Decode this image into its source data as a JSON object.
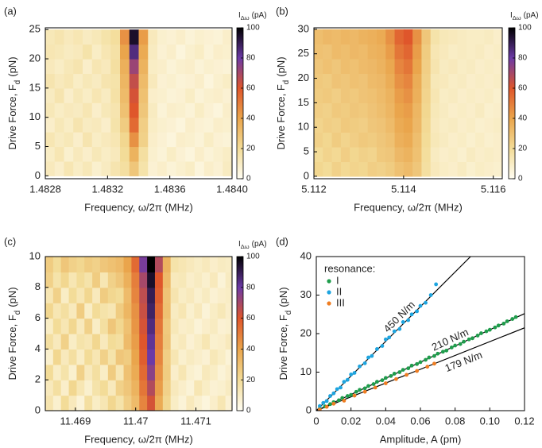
{
  "chart_data": [
    {
      "type": "heatmap",
      "panel_label": "(a)",
      "xlabel": "Frequency, ω/2π (MHz)",
      "ylabel": [
        "Drive Force, F",
        "d",
        "(pN)"
      ],
      "colorbar_label": [
        "I",
        "Δω",
        "(pA)"
      ],
      "xlim": [
        1.4828,
        1.484
      ],
      "xticks": [
        1.4828,
        1.4832,
        1.4836,
        {
          "value": 1.484,
          "label": "1.4840"
        }
      ],
      "ylim": [
        -0.5,
        25.3
      ],
      "yticks": [
        0,
        5,
        10,
        15,
        20,
        25
      ],
      "clim": [
        0,
        100
      ],
      "cticks": [
        0,
        20,
        40,
        60,
        80,
        100
      ],
      "colorscale": [
        [
          0,
          "#fffdf2"
        ],
        [
          20,
          "#f3dc98"
        ],
        [
          40,
          "#eaa54c"
        ],
        [
          60,
          "#df562b"
        ],
        [
          80,
          "#6c3aa6"
        ],
        [
          100,
          "#000000"
        ]
      ],
      "x": [
        1.48283,
        1.48289,
        1.48295,
        1.48301,
        1.48307,
        1.48313,
        1.48319,
        1.48325,
        1.48331,
        1.48337,
        1.48343,
        1.48349,
        1.48355,
        1.48361,
        1.48367,
        1.48373,
        1.48379,
        1.48385,
        1.48391,
        1.48397
      ],
      "y": [
        1.25,
        3.75,
        6.25,
        8.75,
        11.25,
        13.75,
        16.25,
        18.75,
        21.25,
        23.75
      ],
      "z": [
        [
          12,
          9,
          14,
          10,
          13,
          8,
          11,
          15,
          18,
          28,
          16,
          7,
          9,
          6,
          8,
          10,
          5,
          9,
          7,
          11
        ],
        [
          10,
          14,
          8,
          12,
          9,
          13,
          10,
          12,
          20,
          35,
          18,
          8,
          6,
          10,
          7,
          5,
          9,
          6,
          8,
          10
        ],
        [
          14,
          11,
          13,
          9,
          15,
          10,
          12,
          14,
          22,
          45,
          24,
          9,
          7,
          5,
          9,
          8,
          6,
          10,
          7,
          6
        ],
        [
          9,
          13,
          10,
          15,
          11,
          12,
          9,
          16,
          26,
          55,
          25,
          10,
          8,
          7,
          5,
          9,
          7,
          6,
          9,
          8
        ],
        [
          13,
          10,
          12,
          11,
          14,
          9,
          13,
          15,
          30,
          60,
          28,
          11,
          6,
          9,
          8,
          6,
          10,
          7,
          5,
          9
        ],
        [
          11,
          15,
          9,
          13,
          10,
          14,
          11,
          17,
          32,
          62,
          30,
          9,
          8,
          6,
          7,
          10,
          6,
          8,
          9,
          7
        ],
        [
          15,
          12,
          14,
          10,
          13,
          11,
          15,
          16,
          34,
          65,
          32,
          12,
          7,
          8,
          6,
          7,
          9,
          5,
          8,
          10
        ],
        [
          12,
          10,
          13,
          15,
          9,
          14,
          12,
          18,
          36,
          72,
          35,
          10,
          9,
          6,
          8,
          9,
          6,
          8,
          7,
          6
        ],
        [
          14,
          13,
          11,
          12,
          16,
          10,
          14,
          17,
          40,
          85,
          38,
          11,
          7,
          9,
          5,
          8,
          10,
          6,
          9,
          8
        ],
        [
          13,
          15,
          12,
          14,
          11,
          13,
          16,
          19,
          45,
          95,
          42,
          12,
          8,
          7,
          9,
          6,
          8,
          7,
          6,
          9
        ]
      ]
    },
    {
      "type": "heatmap",
      "panel_label": "(b)",
      "xlabel": "Frequency, ω/2π (MHz)",
      "ylabel": [
        "Drive Force, F",
        "d",
        "(pN)"
      ],
      "colorbar_label": [
        "I",
        "Δω",
        "(pA)"
      ],
      "xlim": [
        5.112,
        5.1162
      ],
      "xticks": [
        5.112,
        5.114,
        5.116
      ],
      "ylim": [
        -0.5,
        30.3
      ],
      "yticks": [
        0,
        5,
        10,
        15,
        20,
        25,
        30
      ],
      "clim": [
        0,
        100
      ],
      "cticks": [
        0,
        20,
        40,
        60,
        80,
        100
      ],
      "colorscale": [
        [
          0,
          "#fffdf2"
        ],
        [
          20,
          "#f3dc98"
        ],
        [
          40,
          "#eaa54c"
        ],
        [
          60,
          "#df562b"
        ],
        [
          80,
          "#6c3aa6"
        ],
        [
          100,
          "#000000"
        ]
      ],
      "x": [
        5.1121,
        5.1123,
        5.1125,
        5.1127,
        5.1129,
        5.1131,
        5.1133,
        5.1135,
        5.1137,
        5.1139,
        5.1141,
        5.1143,
        5.1145,
        5.1147,
        5.1149,
        5.1151,
        5.1153,
        5.1155,
        5.1157,
        5.1159,
        5.1161
      ],
      "y": [
        1.5,
        4.5,
        7.5,
        10.5,
        13.5,
        16.5,
        19.5,
        22.5,
        25.5,
        28.5
      ],
      "z": [
        [
          22,
          20,
          24,
          21,
          23,
          22,
          25,
          24,
          26,
          30,
          32,
          28,
          18,
          12,
          10,
          9,
          11,
          8,
          10,
          9,
          8
        ],
        [
          20,
          23,
          21,
          25,
          22,
          24,
          23,
          27,
          28,
          33,
          35,
          30,
          19,
          11,
          9,
          10,
          8,
          11,
          9,
          10,
          9
        ],
        [
          24,
          22,
          26,
          23,
          25,
          27,
          26,
          28,
          30,
          36,
          38,
          31,
          20,
          13,
          11,
          9,
          10,
          8,
          10,
          8,
          9
        ],
        [
          23,
          25,
          24,
          27,
          26,
          25,
          28,
          29,
          32,
          38,
          40,
          33,
          21,
          12,
          10,
          11,
          9,
          10,
          8,
          9,
          10
        ],
        [
          25,
          24,
          27,
          26,
          28,
          27,
          29,
          31,
          34,
          40,
          42,
          34,
          22,
          13,
          11,
          9,
          10,
          9,
          11,
          8,
          9
        ],
        [
          26,
          27,
          25,
          28,
          27,
          29,
          30,
          32,
          35,
          42,
          45,
          36,
          23,
          14,
          10,
          11,
          9,
          10,
          9,
          10,
          8
        ],
        [
          27,
          26,
          29,
          28,
          30,
          29,
          32,
          33,
          37,
          45,
          48,
          37,
          24,
          13,
          12,
          10,
          11,
          9,
          10,
          9,
          10
        ],
        [
          28,
          30,
          28,
          31,
          30,
          32,
          33,
          35,
          39,
          48,
          52,
          40,
          25,
          15,
          11,
          12,
          10,
          11,
          9,
          10,
          9
        ],
        [
          30,
          29,
          32,
          31,
          33,
          32,
          35,
          36,
          42,
          52,
          56,
          42,
          26,
          14,
          12,
          10,
          11,
          10,
          11,
          9,
          10
        ],
        [
          31,
          33,
          32,
          34,
          33,
          35,
          36,
          38,
          45,
          56,
          60,
          45,
          28,
          16,
          13,
          12,
          11,
          10,
          10,
          11,
          9
        ]
      ]
    },
    {
      "type": "heatmap",
      "panel_label": "(c)",
      "xlabel": "Frequency, ω/2π (MHz)",
      "ylabel": [
        "Drive Force, F",
        "d",
        "(pN)"
      ],
      "colorbar_label": [
        "I",
        "Δω",
        "(pA)"
      ],
      "xlim": [
        11.4685,
        11.4716
      ],
      "xticks": [
        11.469,
        11.47,
        11.471
      ],
      "ylim": [
        0,
        10
      ],
      "yticks": [
        0,
        2,
        4,
        6,
        8,
        10
      ],
      "clim": [
        0,
        100
      ],
      "cticks": [
        0,
        20,
        40,
        60,
        80,
        100
      ],
      "colorscale": [
        [
          0,
          "#fffdf2"
        ],
        [
          20,
          "#f3dc98"
        ],
        [
          40,
          "#eaa54c"
        ],
        [
          60,
          "#df562b"
        ],
        [
          80,
          "#6c3aa6"
        ],
        [
          100,
          "#000000"
        ]
      ],
      "x": [
        11.468565,
        11.468695,
        11.468825,
        11.468955,
        11.469085,
        11.469215,
        11.469345,
        11.469475,
        11.469605,
        11.469735,
        11.469865,
        11.469995,
        11.470125,
        11.470255,
        11.470385,
        11.470515,
        11.470645,
        11.470775,
        11.470905,
        11.471035,
        11.471165,
        11.471295,
        11.471425,
        11.471555
      ],
      "y": [
        0.5,
        1.5,
        2.5,
        3.5,
        4.5,
        5.5,
        6.5,
        7.5,
        8.5,
        9.5
      ],
      "z": [
        [
          15,
          8,
          20,
          12,
          6,
          18,
          10,
          14,
          22,
          16,
          25,
          32,
          48,
          62,
          38,
          22,
          10,
          6,
          12,
          8,
          5,
          9,
          14,
          7
        ],
        [
          12,
          18,
          9,
          22,
          14,
          8,
          16,
          20,
          12,
          24,
          28,
          35,
          52,
          68,
          42,
          24,
          12,
          9,
          6,
          14,
          10,
          7,
          8,
          11
        ],
        [
          20,
          10,
          16,
          8,
          24,
          12,
          18,
          10,
          26,
          14,
          30,
          38,
          55,
          75,
          45,
          26,
          9,
          14,
          8,
          6,
          12,
          10,
          6,
          9
        ],
        [
          8,
          22,
          12,
          18,
          10,
          20,
          14,
          24,
          16,
          28,
          26,
          40,
          58,
          80,
          48,
          25,
          14,
          8,
          11,
          9,
          7,
          13,
          10,
          6
        ],
        [
          18,
          12,
          24,
          10,
          16,
          14,
          22,
          12,
          20,
          18,
          32,
          42,
          60,
          82,
          50,
          28,
          10,
          12,
          7,
          10,
          14,
          8,
          9,
          12
        ],
        [
          10,
          20,
          14,
          22,
          12,
          24,
          10,
          18,
          28,
          22,
          30,
          44,
          62,
          85,
          52,
          27,
          13,
          9,
          10,
          6,
          9,
          11,
          7,
          8
        ],
        [
          22,
          14,
          18,
          12,
          26,
          10,
          20,
          16,
          14,
          26,
          34,
          45,
          64,
          88,
          55,
          30,
          11,
          14,
          8,
          12,
          6,
          10,
          13,
          9
        ],
        [
          14,
          24,
          10,
          20,
          14,
          22,
          12,
          26,
          22,
          20,
          32,
          48,
          66,
          90,
          58,
          29,
          15,
          10,
          12,
          8,
          11,
          7,
          9,
          10
        ],
        [
          24,
          16,
          22,
          14,
          20,
          16,
          26,
          14,
          24,
          28,
          36,
          50,
          70,
          95,
          60,
          32,
          12,
          13,
          9,
          11,
          8,
          12,
          6,
          11
        ],
        [
          26,
          20,
          28,
          24,
          22,
          26,
          24,
          28,
          30,
          32,
          40,
          55,
          78,
          100,
          68,
          35,
          16,
          14,
          12,
          10,
          12,
          9,
          11,
          10
        ]
      ]
    },
    {
      "type": "scatter",
      "panel_label": "(d)",
      "xlabel": "Amplitude, A (pm)",
      "ylabel": [
        "Drive Force, F",
        "d",
        "(pN)"
      ],
      "legend_title": "resonance:",
      "xlim": [
        0,
        0.12
      ],
      "xticks": [
        0,
        0.02,
        0.04,
        0.06,
        0.08,
        {
          "value": 0.1,
          "label": "0.10"
        },
        0.12
      ],
      "ylim": [
        0,
        40
      ],
      "yticks": [
        0,
        10,
        20,
        30,
        40
      ],
      "series": [
        {
          "name": "I",
          "color": "#1f9d4c",
          "x": [
            0.002,
            0.005,
            0.008,
            0.01,
            0.013,
            0.015,
            0.018,
            0.02,
            0.023,
            0.025,
            0.028,
            0.03,
            0.033,
            0.035,
            0.038,
            0.04,
            0.043,
            0.045,
            0.048,
            0.05,
            0.053,
            0.055,
            0.058,
            0.06,
            0.063,
            0.065,
            0.068,
            0.07,
            0.073,
            0.075,
            0.078,
            0.08,
            0.083,
            0.085,
            0.088,
            0.09,
            0.093,
            0.095,
            0.098,
            0.1,
            0.103,
            0.105,
            0.108,
            0.11,
            0.113,
            0.115
          ],
          "values": [
            0.5,
            1.1,
            1.7,
            2.2,
            2.7,
            3.3,
            3.8,
            4.1,
            4.9,
            5.4,
            5.8,
            6.4,
            6.9,
            7.5,
            7.9,
            8.5,
            9.0,
            9.6,
            10.0,
            10.6,
            11.0,
            11.7,
            12.1,
            12.6,
            13.2,
            13.8,
            14.2,
            14.8,
            15.3,
            15.6,
            16.4,
            16.9,
            17.3,
            17.9,
            18.5,
            18.8,
            19.5,
            20.1,
            20.6,
            21.0,
            21.6,
            22.1,
            22.6,
            23.2,
            23.8,
            24.3
          ]
        },
        {
          "name": "II",
          "color": "#1ea5e0",
          "x": [
            0.002,
            0.004,
            0.006,
            0.008,
            0.01,
            0.012,
            0.014,
            0.016,
            0.018,
            0.02,
            0.022,
            0.025,
            0.028,
            0.03,
            0.032,
            0.035,
            0.038,
            0.04,
            0.042,
            0.045,
            0.048,
            0.05,
            0.053,
            0.055,
            0.058,
            0.06,
            0.063,
            0.066,
            0.069
          ],
          "values": [
            1.2,
            2.0,
            2.5,
            3.8,
            4.5,
            5.6,
            6.0,
            7.5,
            8.0,
            9.4,
            9.8,
            11.5,
            12.3,
            13.8,
            14.2,
            16.0,
            16.8,
            18.5,
            19.0,
            20.6,
            21.2,
            23.0,
            23.5,
            25.0,
            25.8,
            27.2,
            28.0,
            30.0,
            32.8
          ]
        },
        {
          "name": "III",
          "color": "#ef7d22",
          "x": [
            0.002,
            0.006,
            0.01,
            0.016,
            0.022,
            0.028,
            0.034,
            0.04,
            0.046,
            0.052,
            0.058,
            0.064,
            0.068
          ],
          "values": [
            0.3,
            1.0,
            1.8,
            2.6,
            3.9,
            4.9,
            6.0,
            7.1,
            8.2,
            9.3,
            10.3,
            11.4,
            12.2
          ]
        }
      ],
      "fits": [
        {
          "label": "450 N/m",
          "color": "#000000",
          "x": [
            0,
            0.0889
          ],
          "values": [
            0,
            40
          ]
        },
        {
          "label": "210 N/m",
          "color": "#000000",
          "x": [
            0,
            0.12
          ],
          "values": [
            0,
            25.2
          ]
        },
        {
          "label": "179 N/m",
          "color": "#000000",
          "x": [
            0,
            0.12
          ],
          "values": [
            0,
            21.5
          ]
        }
      ]
    }
  ]
}
